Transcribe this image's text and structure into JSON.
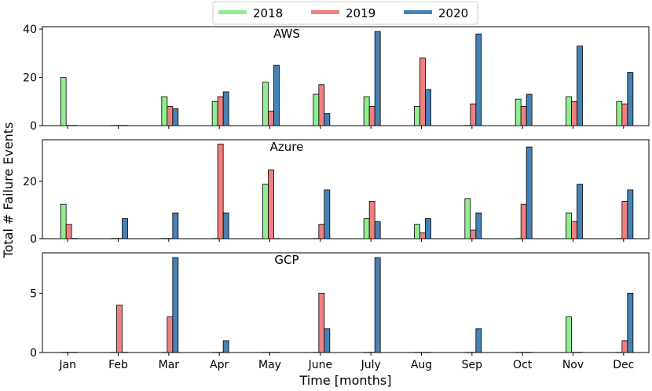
{
  "ylabel": "Total # Failure Events",
  "xlabel": "Time [months]",
  "legend": {
    "placement": "top-center",
    "entries": [
      {
        "name": "2018",
        "color": "#90ee90"
      },
      {
        "name": "2019",
        "color": "#f08080"
      },
      {
        "name": "2020",
        "color": "#4682b4"
      }
    ]
  },
  "chart_data": [
    {
      "type": "bar",
      "title": "AWS",
      "categories": [
        "Jan",
        "Feb",
        "Mar",
        "Apr",
        "May",
        "June",
        "July",
        "Aug",
        "Sep",
        "Oct",
        "Nov",
        "Dec"
      ],
      "ylim": [
        0,
        41
      ],
      "yticks": [
        0,
        20,
        40
      ],
      "series": [
        {
          "name": "2018",
          "values": [
            20,
            0,
            12,
            10,
            18,
            13,
            12,
            8,
            0,
            11,
            12,
            10
          ]
        },
        {
          "name": "2019",
          "values": [
            0,
            0,
            8,
            12,
            6,
            17,
            8,
            28,
            9,
            8,
            10,
            9
          ]
        },
        {
          "name": "2020",
          "values": [
            0,
            0,
            7,
            14,
            25,
            5,
            39,
            15,
            38,
            13,
            33,
            22
          ]
        }
      ]
    },
    {
      "type": "bar",
      "title": "Azure",
      "categories": [
        "Jan",
        "Feb",
        "Mar",
        "Apr",
        "May",
        "June",
        "July",
        "Aug",
        "Sep",
        "Oct",
        "Nov",
        "Dec"
      ],
      "ylim": [
        0,
        34.5
      ],
      "yticks": [
        0,
        20
      ],
      "series": [
        {
          "name": "2018",
          "values": [
            12,
            0,
            0,
            0,
            19,
            0,
            7,
            5,
            14,
            0,
            9,
            0
          ]
        },
        {
          "name": "2019",
          "values": [
            5,
            0,
            0,
            33,
            24,
            5,
            13,
            2,
            3,
            12,
            6,
            13
          ]
        },
        {
          "name": "2020",
          "values": [
            0,
            7,
            9,
            9,
            0,
            17,
            6,
            7,
            9,
            32,
            19,
            17
          ]
        }
      ]
    },
    {
      "type": "bar",
      "title": "GCP",
      "categories": [
        "Jan",
        "Feb",
        "Mar",
        "Apr",
        "May",
        "June",
        "July",
        "Aug",
        "Sep",
        "Oct",
        "Nov",
        "Dec"
      ],
      "ylim": [
        0,
        8.4
      ],
      "yticks": [
        0,
        5
      ],
      "series": [
        {
          "name": "2018",
          "values": [
            0,
            0,
            0,
            0,
            0,
            0,
            0,
            0,
            0,
            0,
            3,
            0
          ]
        },
        {
          "name": "2019",
          "values": [
            0,
            4,
            3,
            0,
            0,
            5,
            0,
            0,
            0,
            0,
            0,
            1
          ]
        },
        {
          "name": "2020",
          "values": [
            0,
            0,
            8,
            1,
            0,
            2,
            8,
            0,
            2,
            0,
            0,
            5
          ]
        }
      ]
    }
  ]
}
